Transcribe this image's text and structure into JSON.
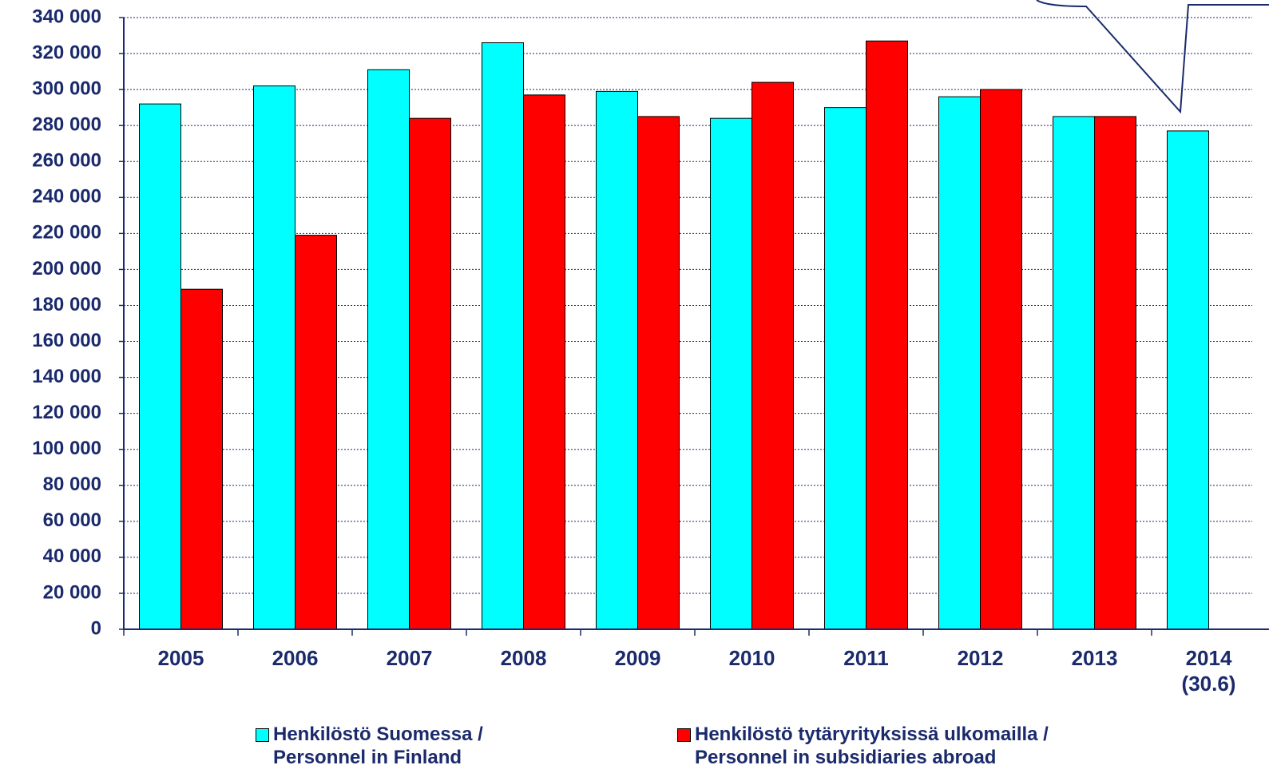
{
  "chart_data": {
    "type": "bar",
    "categories": [
      "2005",
      "2006",
      "2007",
      "2008",
      "2009",
      "2010",
      "2011",
      "2012",
      "2013",
      "2014\n(30.6)"
    ],
    "series": [
      {
        "name": "Henkilöstö Suomessa /\nPersonnel in Finland",
        "color": "#00ffff",
        "values": [
          292000,
          302000,
          311000,
          326000,
          299000,
          284000,
          290000,
          296000,
          285000,
          277000
        ]
      },
      {
        "name": "Henkilöstö tytäryrityksissä ulkomailla /\nPersonnel in subsidiaries abroad",
        "color": "#ff0000",
        "values": [
          189000,
          219000,
          284000,
          297000,
          285000,
          304000,
          327000,
          300000,
          285000,
          null
        ]
      }
    ],
    "ylim": [
      0,
      340000
    ],
    "yticks": [
      {
        "value": 0,
        "label": "0"
      },
      {
        "value": 20000,
        "label": "20 000"
      },
      {
        "value": 40000,
        "label": "40 000"
      },
      {
        "value": 60000,
        "label": "60 000"
      },
      {
        "value": 80000,
        "label": "80 000"
      },
      {
        "value": 100000,
        "label": "100 000"
      },
      {
        "value": 120000,
        "label": "120 000"
      },
      {
        "value": 140000,
        "label": "140 000"
      },
      {
        "value": 160000,
        "label": "160 000"
      },
      {
        "value": 180000,
        "label": "180 000"
      },
      {
        "value": 200000,
        "label": "200 000"
      },
      {
        "value": 220000,
        "label": "220 000"
      },
      {
        "value": 240000,
        "label": "240 000"
      },
      {
        "value": 260000,
        "label": "260 000"
      },
      {
        "value": 280000,
        "label": "280 000"
      },
      {
        "value": 300000,
        "label": "300 000"
      },
      {
        "value": 320000,
        "label": "320 000"
      },
      {
        "value": 340000,
        "label": "340 000"
      }
    ],
    "grid": true,
    "legend": "bottom"
  }
}
